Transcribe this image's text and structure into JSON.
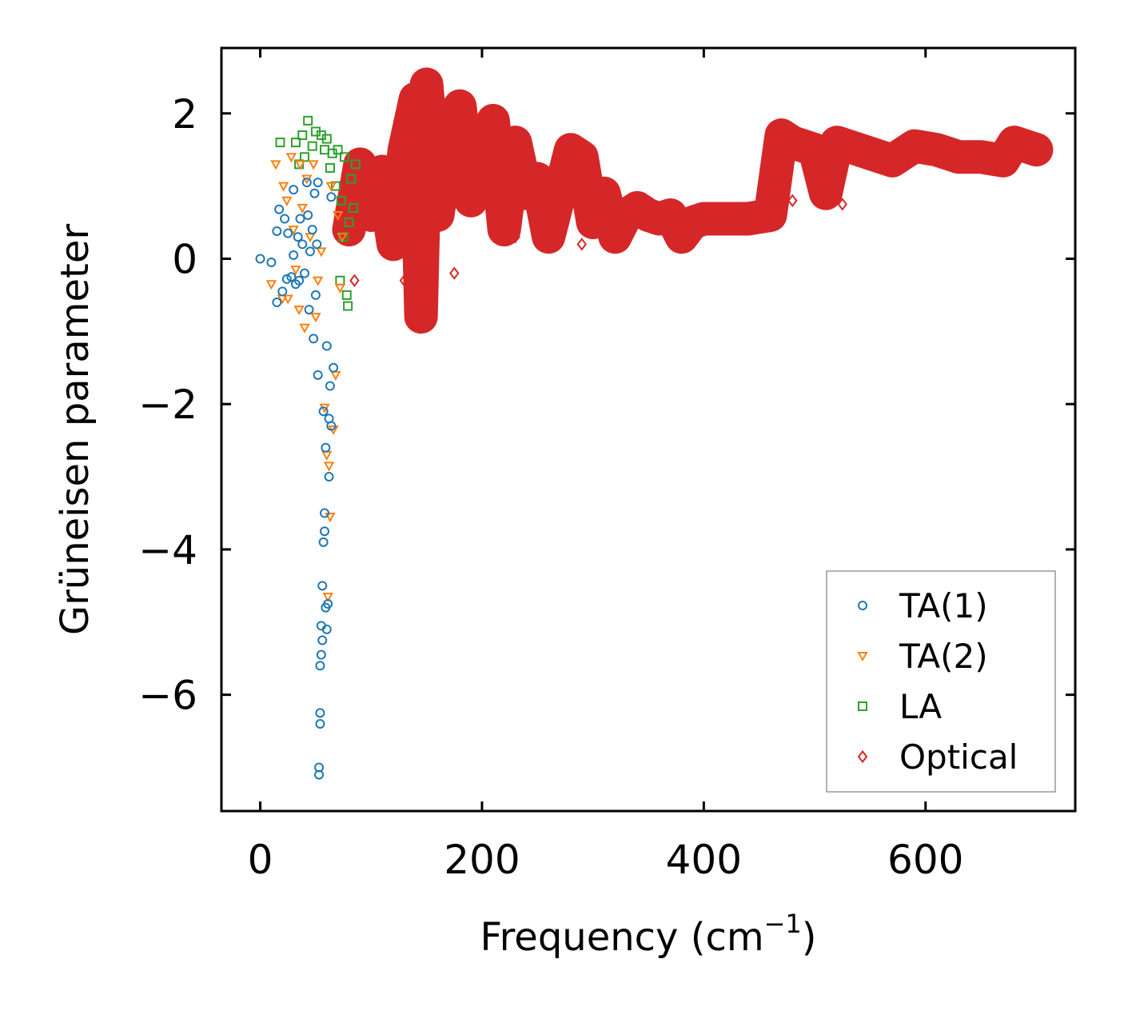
{
  "chart_data": {
    "type": "scatter",
    "title": "",
    "xlabel": "Frequency (cm",
    "xlabel_sup": "−1",
    "xlabel_end": ")",
    "ylabel": "Grüneisen parameter",
    "xlim": [
      -35,
      735
    ],
    "ylim": [
      -7.6,
      2.9
    ],
    "xticks": [
      0,
      200,
      400,
      600
    ],
    "xtick_labels": [
      "0",
      "200",
      "400",
      "600"
    ],
    "yticks": [
      2,
      0,
      -2,
      -4,
      -6
    ],
    "ytick_labels": [
      "2",
      "0",
      "−2",
      "−4",
      "−6"
    ],
    "legend_position": "bottom-right",
    "series": [
      {
        "name": "TA(1)",
        "marker": "circle",
        "color": "#1f77b4",
        "points": [
          [
            0,
            0
          ],
          [
            10,
            -0.05
          ],
          [
            15,
            -0.6
          ],
          [
            15,
            0.38
          ],
          [
            17,
            0.68
          ],
          [
            20,
            -0.45
          ],
          [
            22,
            0.55
          ],
          [
            24,
            -0.28
          ],
          [
            25,
            0.35
          ],
          [
            28,
            -0.25
          ],
          [
            30,
            0.05
          ],
          [
            30,
            0.95
          ],
          [
            32,
            -0.35
          ],
          [
            34,
            0.3
          ],
          [
            35,
            -0.3
          ],
          [
            36,
            0.55
          ],
          [
            38,
            0.2
          ],
          [
            40,
            -0.2
          ],
          [
            42,
            1.05
          ],
          [
            43,
            0.6
          ],
          [
            44,
            -0.7
          ],
          [
            45,
            0.1
          ],
          [
            47,
            0.4
          ],
          [
            48,
            -1.1
          ],
          [
            49,
            0.9
          ],
          [
            50,
            -0.5
          ],
          [
            51,
            0.2
          ],
          [
            52,
            1.05
          ],
          [
            52,
            -1.6
          ],
          [
            53,
            -7.1
          ],
          [
            53,
            -7.0
          ],
          [
            54,
            -6.4
          ],
          [
            54,
            -6.25
          ],
          [
            54,
            -5.6
          ],
          [
            55,
            -5.45
          ],
          [
            55,
            -5.05
          ],
          [
            56,
            -5.25
          ],
          [
            56,
            -4.5
          ],
          [
            57,
            -3.9
          ],
          [
            57,
            -2.1
          ],
          [
            58,
            -3.75
          ],
          [
            58,
            -3.5
          ],
          [
            59,
            -4.8
          ],
          [
            59,
            -2.6
          ],
          [
            60,
            -1.2
          ],
          [
            60,
            -5.1
          ],
          [
            61,
            -4.75
          ],
          [
            62,
            -2.2
          ],
          [
            62,
            -3.0
          ],
          [
            63,
            -1.75
          ],
          [
            64,
            -2.3
          ],
          [
            64,
            0.85
          ],
          [
            66,
            -1.5
          ]
        ]
      },
      {
        "name": "TA(2)",
        "marker": "triangle-down",
        "color": "#ff7f0e",
        "points": [
          [
            10,
            -0.35
          ],
          [
            14,
            1.3
          ],
          [
            20,
            -0.55
          ],
          [
            21,
            1.0
          ],
          [
            24,
            0.8
          ],
          [
            25,
            -0.55
          ],
          [
            28,
            1.4
          ],
          [
            30,
            0.4
          ],
          [
            32,
            -0.15
          ],
          [
            35,
            -0.7
          ],
          [
            36,
            1.3
          ],
          [
            38,
            0.7
          ],
          [
            40,
            -0.95
          ],
          [
            42,
            1.1
          ],
          [
            45,
            0.3
          ],
          [
            48,
            1.3
          ],
          [
            50,
            -0.8
          ],
          [
            52,
            -0.3
          ],
          [
            55,
            0.1
          ],
          [
            58,
            -2.05
          ],
          [
            60,
            -2.7
          ],
          [
            61,
            -4.65
          ],
          [
            62,
            -2.85
          ],
          [
            63,
            -3.55
          ],
          [
            64,
            1.0
          ],
          [
            66,
            -2.35
          ],
          [
            68,
            -1.6
          ],
          [
            70,
            0.6
          ],
          [
            72,
            -0.4
          ],
          [
            74,
            0.3
          ]
        ]
      },
      {
        "name": "LA",
        "marker": "square",
        "color": "#2ca02c",
        "points": [
          [
            18,
            1.6
          ],
          [
            32,
            1.6
          ],
          [
            35,
            1.3
          ],
          [
            38,
            1.7
          ],
          [
            40,
            1.4
          ],
          [
            43,
            1.9
          ],
          [
            47,
            1.55
          ],
          [
            50,
            1.75
          ],
          [
            55,
            1.7
          ],
          [
            58,
            1.5
          ],
          [
            60,
            1.65
          ],
          [
            63,
            1.25
          ],
          [
            65,
            1.45
          ],
          [
            68,
            1.0
          ],
          [
            70,
            1.5
          ],
          [
            72,
            -0.3
          ],
          [
            73,
            0.8
          ],
          [
            75,
            0.3
          ],
          [
            76,
            1.4
          ],
          [
            78,
            -0.5
          ],
          [
            79,
            -0.65
          ],
          [
            80,
            0.5
          ],
          [
            82,
            1.1
          ],
          [
            84,
            0.7
          ],
          [
            86,
            1.3
          ]
        ]
      },
      {
        "name": "Optical",
        "marker": "diamond",
        "color": "#d62728",
        "polyline": [
          [
            80,
            0.4
          ],
          [
            90,
            1.3
          ],
          [
            100,
            0.6
          ],
          [
            110,
            1.2
          ],
          [
            120,
            0.2
          ],
          [
            130,
            1.5
          ],
          [
            140,
            2.2
          ],
          [
            145,
            -0.8
          ],
          [
            150,
            2.4
          ],
          [
            160,
            0.6
          ],
          [
            170,
            1.6
          ],
          [
            180,
            2.1
          ],
          [
            190,
            0.8
          ],
          [
            200,
            1.1
          ],
          [
            210,
            1.9
          ],
          [
            220,
            0.4
          ],
          [
            230,
            1.6
          ],
          [
            240,
            0.9
          ],
          [
            250,
            1.1
          ],
          [
            260,
            0.3
          ],
          [
            270,
            0.9
          ],
          [
            280,
            1.5
          ],
          [
            290,
            1.4
          ],
          [
            300,
            0.5
          ],
          [
            310,
            0.9
          ],
          [
            320,
            0.3
          ],
          [
            330,
            0.6
          ],
          [
            340,
            0.7
          ],
          [
            350,
            0.6
          ],
          [
            360,
            0.55
          ],
          [
            370,
            0.6
          ],
          [
            380,
            0.3
          ],
          [
            390,
            0.5
          ],
          [
            400,
            0.55
          ],
          [
            420,
            0.55
          ],
          [
            440,
            0.55
          ],
          [
            460,
            0.6
          ],
          [
            470,
            1.7
          ],
          [
            480,
            1.6
          ],
          [
            500,
            1.5
          ],
          [
            510,
            0.9
          ],
          [
            520,
            1.6
          ],
          [
            540,
            1.5
          ],
          [
            560,
            1.4
          ],
          [
            570,
            1.35
          ],
          [
            590,
            1.55
          ],
          [
            610,
            1.5
          ],
          [
            630,
            1.4
          ],
          [
            650,
            1.4
          ],
          [
            670,
            1.35
          ],
          [
            680,
            1.6
          ],
          [
            700,
            1.5
          ]
        ],
        "points": [
          [
            85,
            -0.3
          ],
          [
            130,
            -0.3
          ],
          [
            135,
            -0.1
          ],
          [
            150,
            -0.6
          ],
          [
            175,
            -0.2
          ],
          [
            230,
            0.3
          ],
          [
            290,
            0.2
          ],
          [
            475,
            1.4
          ],
          [
            480,
            0.8
          ],
          [
            505,
            0.9
          ],
          [
            525,
            0.75
          ]
        ]
      }
    ]
  }
}
